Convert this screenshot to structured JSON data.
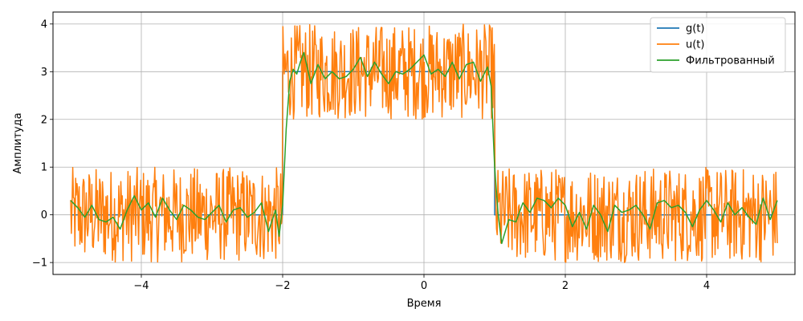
{
  "chart_data": {
    "type": "line",
    "title": "",
    "xlabel": "Время",
    "ylabel": "Амплитуда",
    "xlim": [
      -5.25,
      5.25
    ],
    "ylim": [
      -1.25,
      4.25
    ],
    "x_ticks": [
      -4,
      -2,
      0,
      2,
      4
    ],
    "x_tick_labels": [
      "−4",
      "−2",
      "0",
      "2",
      "4"
    ],
    "y_ticks": [
      -1,
      0,
      1,
      2,
      3,
      4
    ],
    "y_tick_labels": [
      "−1",
      "0",
      "1",
      "2",
      "3",
      "4"
    ],
    "grid": true,
    "legend_position": "top-right",
    "series": [
      {
        "name": "g(t)",
        "color": "#1f77b4",
        "x": [
          -5,
          -2,
          -2,
          1,
          1,
          5
        ],
        "y": [
          0,
          0,
          3,
          3,
          0,
          0
        ]
      },
      {
        "name": "u(t)",
        "color": "#ff7f0e",
        "x_range": [
          -5,
          5
        ],
        "samples": 1000,
        "description_of_shape": "g(t) plus uniform noise in [-1, 1]"
      },
      {
        "name": "Фильтрованный",
        "color": "#2ca02c",
        "x": [
          -5.0,
          -4.9,
          -4.8,
          -4.7,
          -4.6,
          -4.5,
          -4.4,
          -4.3,
          -4.2,
          -4.1,
          -4.0,
          -3.9,
          -3.8,
          -3.7,
          -3.6,
          -3.5,
          -3.4,
          -3.3,
          -3.2,
          -3.1,
          -3.0,
          -2.9,
          -2.8,
          -2.7,
          -2.6,
          -2.5,
          -2.4,
          -2.3,
          -2.2,
          -2.1,
          -2.05,
          -2.0,
          -1.95,
          -1.9,
          -1.85,
          -1.8,
          -1.75,
          -1.7,
          -1.6,
          -1.5,
          -1.4,
          -1.3,
          -1.2,
          -1.1,
          -1.0,
          -0.9,
          -0.8,
          -0.7,
          -0.6,
          -0.5,
          -0.4,
          -0.3,
          -0.2,
          -0.1,
          0.0,
          0.1,
          0.2,
          0.3,
          0.4,
          0.5,
          0.6,
          0.7,
          0.8,
          0.85,
          0.9,
          0.95,
          1.0,
          1.05,
          1.1,
          1.15,
          1.2,
          1.3,
          1.4,
          1.5,
          1.6,
          1.7,
          1.8,
          1.9,
          2.0,
          2.1,
          2.2,
          2.3,
          2.4,
          2.5,
          2.6,
          2.7,
          2.8,
          2.9,
          3.0,
          3.1,
          3.2,
          3.3,
          3.4,
          3.5,
          3.6,
          3.7,
          3.8,
          3.9,
          4.0,
          4.1,
          4.2,
          4.3,
          4.4,
          4.5,
          4.6,
          4.7,
          4.8,
          4.9,
          5.0
        ],
        "y": [
          0.3,
          0.15,
          -0.05,
          0.2,
          -0.1,
          -0.15,
          -0.05,
          -0.3,
          0.1,
          0.4,
          0.1,
          0.25,
          -0.05,
          0.35,
          0.1,
          -0.1,
          0.2,
          0.1,
          -0.05,
          -0.1,
          0.05,
          0.2,
          -0.15,
          0.1,
          0.15,
          -0.05,
          0.05,
          0.25,
          -0.35,
          0.1,
          -0.45,
          0.2,
          1.8,
          2.8,
          3.05,
          2.95,
          3.2,
          3.4,
          2.75,
          3.15,
          2.85,
          3.0,
          2.85,
          2.9,
          3.05,
          3.3,
          2.9,
          3.2,
          2.95,
          2.75,
          3.0,
          2.95,
          3.05,
          3.2,
          3.35,
          2.95,
          3.05,
          2.9,
          3.2,
          2.85,
          3.15,
          3.2,
          2.8,
          2.95,
          3.1,
          2.7,
          1.0,
          0.0,
          -0.6,
          -0.35,
          -0.1,
          -0.15,
          0.25,
          0.05,
          0.35,
          0.3,
          0.15,
          0.35,
          0.2,
          -0.25,
          0.05,
          -0.3,
          0.2,
          0.0,
          -0.35,
          0.2,
          0.05,
          0.1,
          0.2,
          0.0,
          -0.3,
          0.25,
          0.3,
          0.15,
          0.2,
          0.05,
          -0.25,
          0.1,
          0.3,
          0.1,
          -0.15,
          0.25,
          0.0,
          0.15,
          -0.05,
          -0.2,
          0.35,
          -0.1,
          0.3
        ]
      }
    ]
  }
}
